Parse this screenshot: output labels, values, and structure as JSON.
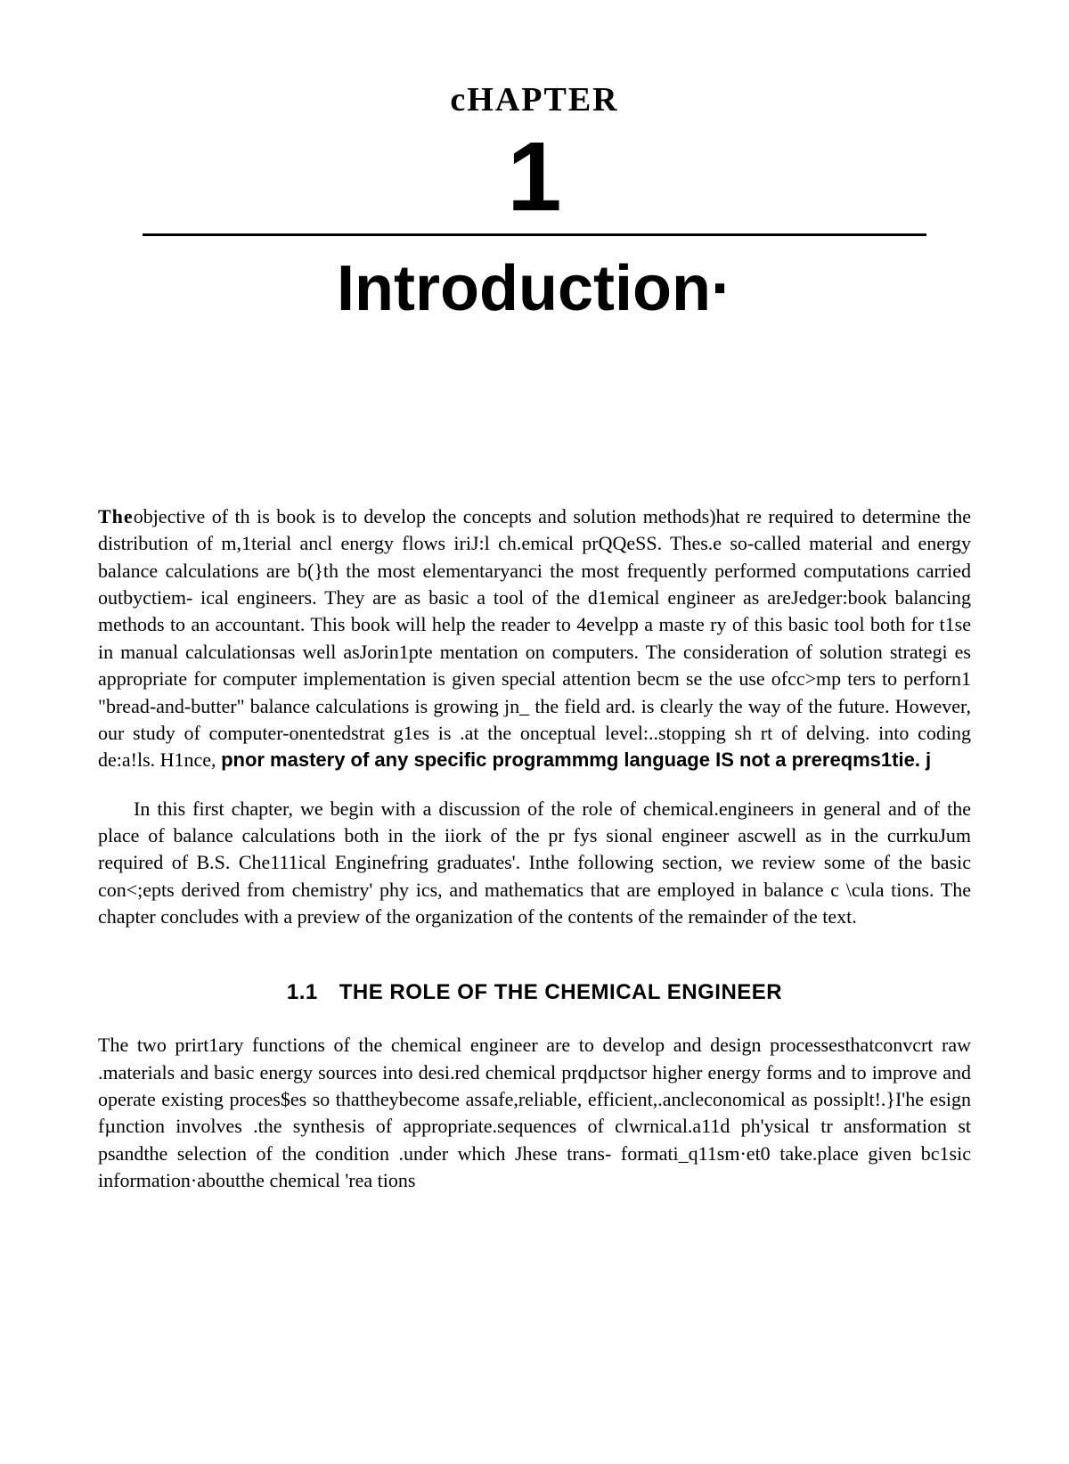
{
  "chapter": {
    "label": "cHAPTER",
    "number": "1",
    "title": "Introduction·"
  },
  "paragraphs": {
    "p1_lead": "The",
    "p1": "objective of th is book is to develop the concepts and solution methods)hat re required to determine the distribution of m,1terial ancl energy flows iriJ:l ch.emical prQQeSS. Thes.e so-called material and energy balance calculations are b(}th the most elementaryanci the most frequently performed computations carried outbyctiem- ical engineers. They are as basic a tool of the d1emical engineer as areJedger:book balancing methods to an accountant. This book will help the reader to 4evelpp a maste ry of this basic tool both for t1se in manual calculationsas well asJorin1pte mentation on computers. The consideration of solution strategi es appropriate for computer implementation is given special attention becm se the use ofcc>mp ters to perforn1 \"bread-and-butter\" balance calculations is growing jn_ the field ard. is clearly the way of the future. However, our study of computer-onentedstrat g1es is .at the onceptual level:..stopping sh rt of delving. into coding de:a!ls. H1nce,",
    "p1_bold": "pnor mastery of any specific programmmg language IS not a prereqms1tie.   j",
    "p2": "In this first chapter, we begin with a discussion of the role of chemical.engineers in general and of the place of balance calculations both in the iiork of the pr fys sional engineer ascwell as in the currkuJum required of B.S. Che111ical Enginefring graduates'. Inthe following section, we review some of the basic con<;epts derived from chemistry' phy ics, and mathematics that are employed in balance c \\cula tions. The chapter concludes with a preview of the organization of the contents of the remainder of the text.",
    "p3": "The two prirt1ary functions of the chemical engineer are to develop and design processesthatconvcrt raw .materials and basic energy sources into desi.red chemical prqdµctsor higher energy forms and to improve and operate existing proces$es so thattheybecome assafe,reliable, efficient,.ancleconomical as possiplt!.}I'he esign fµnction involves .the synthesis of appropriate.sequences of clwrnical.a11d ph'ysical tr ansformation st psandthe selection of the condition .under which Jhese trans- formati_q11sm·et0   take.place given bc1sic information·aboutthe chemical 'rea tions"
  },
  "section": {
    "number": "1.1",
    "title": "THE ROLE OF THE CHEMICAL ENGINEER"
  },
  "style": {
    "page_bg": "#ffffff",
    "text_color": "#000000",
    "rule_color": "#000000",
    "chapter_label_fontsize": 38,
    "chapter_number_fontsize": 110,
    "chapter_title_fontsize": 72,
    "body_fontsize": 22,
    "section_heading_fontsize": 24
  }
}
